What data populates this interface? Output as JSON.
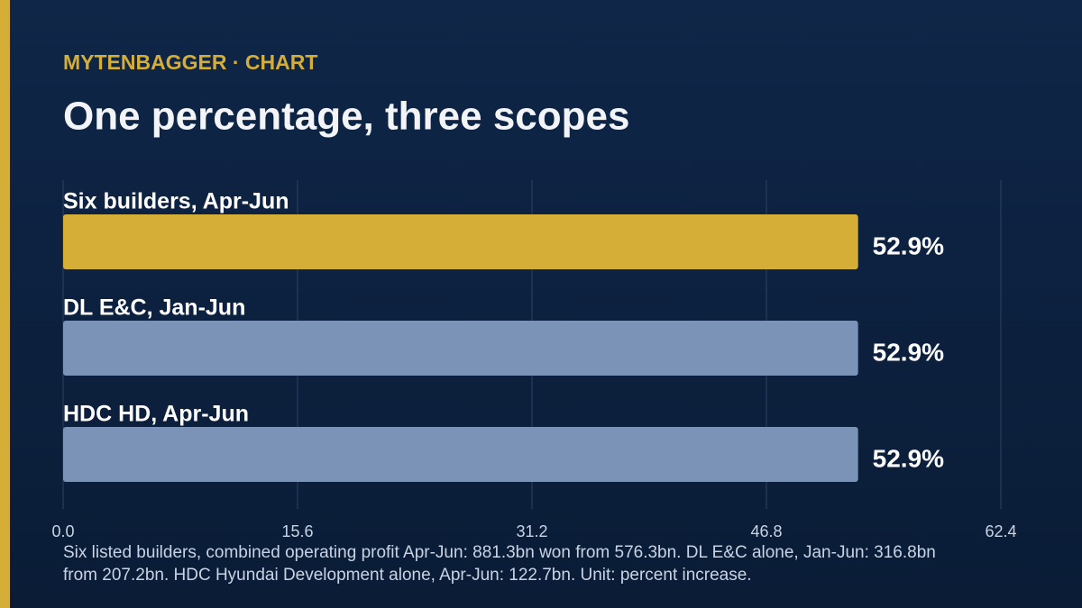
{
  "chart_data": {
    "type": "hbar",
    "kicker": "MYTENBAGGER · CHART",
    "title": "One percentage, three scopes",
    "categories": [
      "Six builders, Apr-Jun",
      "DL E&C, Jan-Jun",
      "HDC HD, Apr-Jun"
    ],
    "values": [
      52.9,
      52.9,
      52.9
    ],
    "value_labels": [
      "52.9%",
      "52.9%",
      "52.9%"
    ],
    "colors": [
      "#d4ae37",
      "#7b93b6",
      "#7b93b6"
    ],
    "xlim": [
      0,
      62.4
    ],
    "xticks": [
      {
        "value": 0,
        "label": "0.0"
      },
      15.6,
      31.2,
      46.8,
      62.4
    ],
    "grid": true,
    "note": "Six listed builders, combined operating profit Apr-Jun: 881.3bn won from 576.3bn. DL E&C alone, Jan-Jun: 316.8bn from 207.2bn. HDC Hyundai Development alone, Apr-Jun: 122.7bn. Unit: percent increase."
  }
}
